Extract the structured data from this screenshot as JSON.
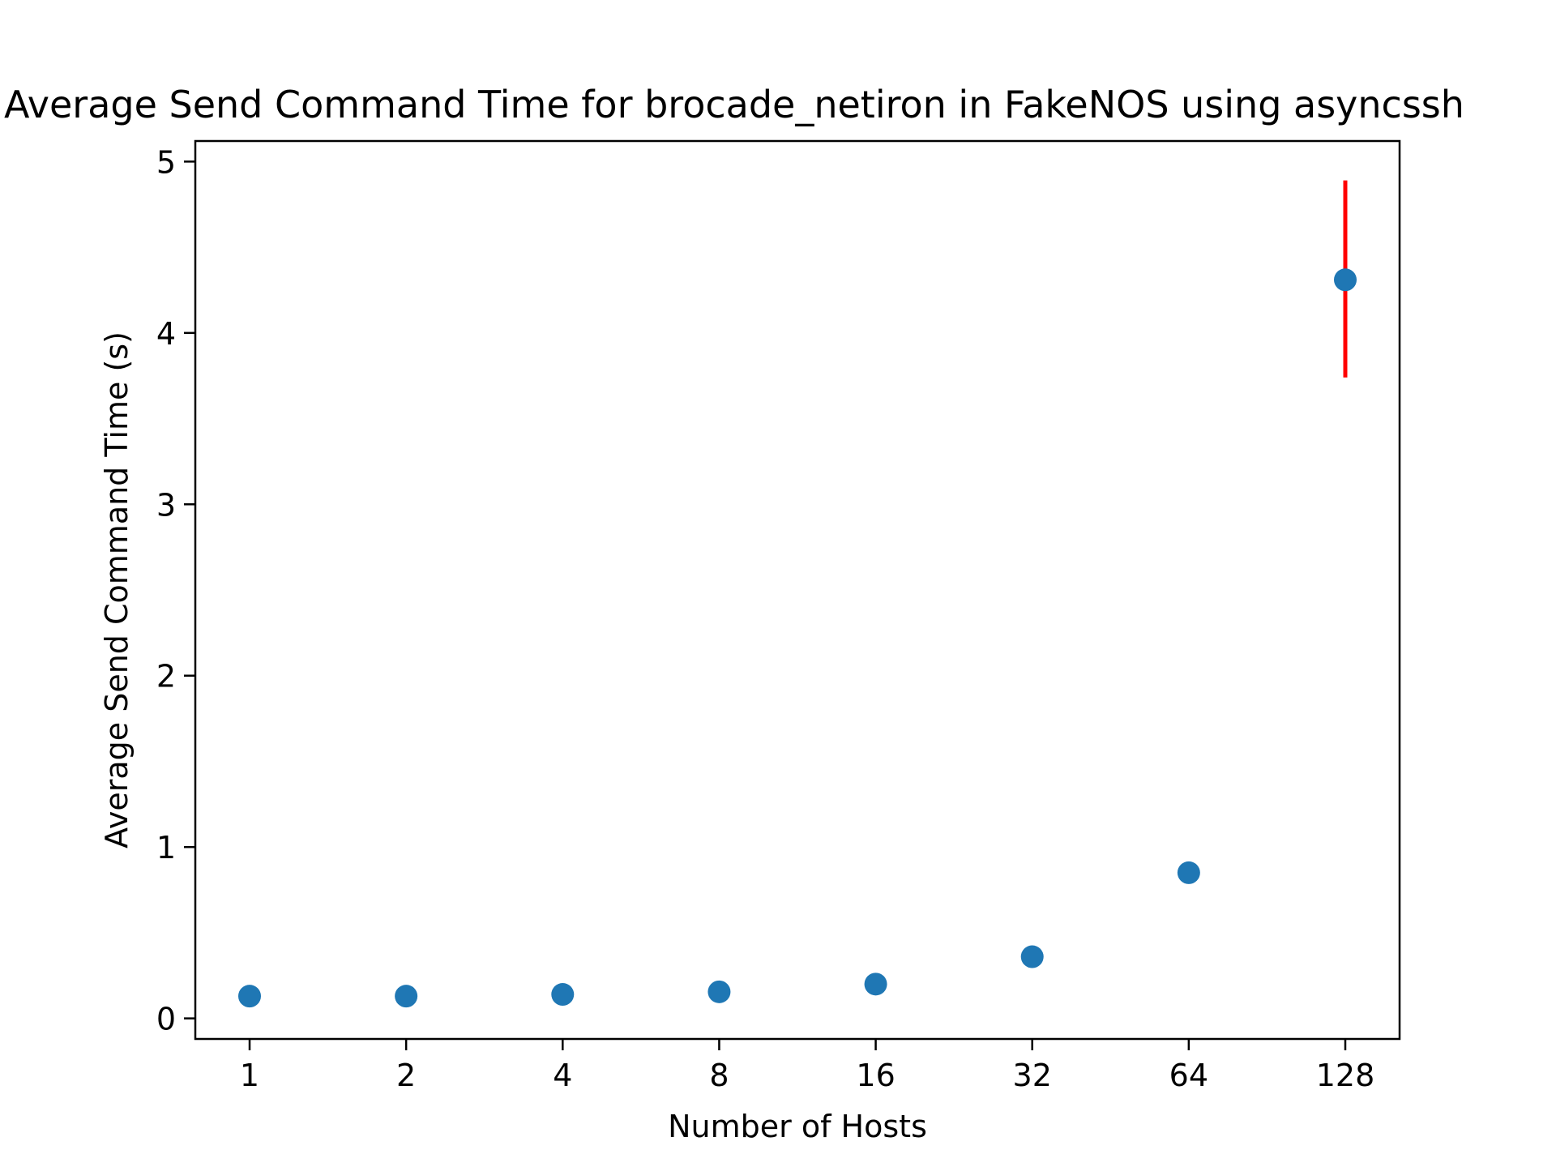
{
  "chart_data": {
    "type": "scatter",
    "title": "Average Send Command Time for brocade_netiron in FakeNOS using asyncssh",
    "xlabel": "Number of Hosts",
    "ylabel": "Average Send Command Time (s)",
    "categories": [
      "1",
      "2",
      "4",
      "8",
      "16",
      "32",
      "64",
      "128"
    ],
    "values": [
      0.13,
      0.13,
      0.14,
      0.155,
      0.2,
      0.36,
      0.85,
      4.31
    ],
    "error_low": [
      0,
      0,
      0,
      0,
      0,
      0,
      0,
      3.74
    ],
    "error_high": [
      0,
      0,
      0,
      0,
      0,
      0,
      0,
      4.89
    ],
    "yticks": [
      "0",
      "1",
      "2",
      "3",
      "4",
      "5"
    ],
    "ylim": [
      -0.12,
      5.12
    ],
    "grid": false,
    "point_color": "#1f77b4",
    "errorbar_color": "#ff0000"
  }
}
